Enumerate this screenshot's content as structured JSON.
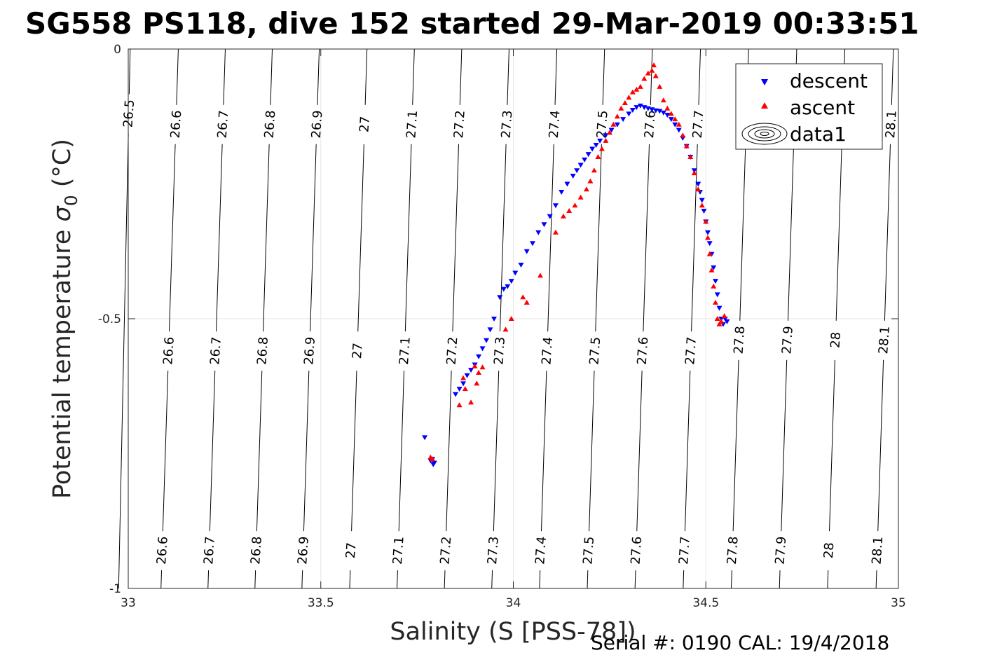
{
  "chart_data": {
    "type": "scatter",
    "title": "SG558 PS118, dive 152 started 29-Mar-2019 00:33:51",
    "xlabel": "Salinity (S [PSS-78])",
    "ylabel": "Potential temperature σ_0 (°C)",
    "ylabel_main": "Potential temperature ",
    "ylabel_symbol": "σ",
    "ylabel_sub": "0",
    "ylabel_unit": " (°C)",
    "xlim": [
      33,
      35
    ],
    "ylim": [
      -1,
      0
    ],
    "xticks": [
      33,
      33.5,
      34,
      34.5,
      35
    ],
    "xtick_labels": [
      "33",
      "33.5",
      "34",
      "34.5",
      "35"
    ],
    "yticks": [
      0,
      -0.5,
      -1
    ],
    "ytick_labels": [
      "0",
      "-0.5",
      "-1"
    ],
    "grid": true,
    "legend_position": "top-right",
    "legend": [
      {
        "label": "descent",
        "marker": "down-triangle",
        "color": "#0000ff"
      },
      {
        "label": "ascent",
        "marker": "up-triangle",
        "color": "#ff0000"
      },
      {
        "label": "data1",
        "marker": "contour",
        "color": "#000000"
      }
    ],
    "contours": [
      {
        "level": "26.5",
        "x_top": 33.005,
        "x_bottom": 32.975,
        "labels_y": [
          -0.12
        ]
      },
      {
        "level": "26.6",
        "x_top": 33.13,
        "x_bottom": 33.085,
        "labels_y": [
          -0.14,
          -0.56,
          -0.93
        ]
      },
      {
        "level": "26.7",
        "x_top": 33.252,
        "x_bottom": 33.207,
        "labels_y": [
          -0.14,
          -0.56,
          -0.93
        ]
      },
      {
        "level": "26.8",
        "x_top": 33.374,
        "x_bottom": 33.329,
        "labels_y": [
          -0.14,
          -0.56,
          -0.93
        ]
      },
      {
        "level": "26.9",
        "x_top": 33.496,
        "x_bottom": 33.451,
        "labels_y": [
          -0.14,
          -0.56,
          -0.93
        ]
      },
      {
        "level": "27",
        "x_top": 33.62,
        "x_bottom": 33.575,
        "labels_y": [
          -0.14,
          -0.56,
          -0.93
        ]
      },
      {
        "level": "27.1",
        "x_top": 33.743,
        "x_bottom": 33.698,
        "labels_y": [
          -0.14,
          -0.56,
          -0.93
        ]
      },
      {
        "level": "27.2",
        "x_top": 33.866,
        "x_bottom": 33.821,
        "labels_y": [
          -0.14,
          -0.56,
          -0.93
        ]
      },
      {
        "level": "27.3",
        "x_top": 33.989,
        "x_bottom": 33.944,
        "labels_y": [
          -0.14,
          -0.56,
          -0.93
        ]
      },
      {
        "level": "27.4",
        "x_top": 34.113,
        "x_bottom": 34.068,
        "labels_y": [
          -0.14,
          -0.56,
          -0.93
        ]
      },
      {
        "level": "27.5",
        "x_top": 34.237,
        "x_bottom": 34.192,
        "labels_y": [
          -0.14,
          -0.56,
          -0.93
        ]
      },
      {
        "level": "27.6",
        "x_top": 34.361,
        "x_bottom": 34.316,
        "labels_y": [
          -0.14,
          -0.56,
          -0.93
        ]
      },
      {
        "level": "27.7",
        "x_top": 34.486,
        "x_bottom": 34.441,
        "labels_y": [
          -0.14,
          -0.56,
          -0.93
        ]
      },
      {
        "level": "27.8",
        "x_top": 34.611,
        "x_bottom": 34.566,
        "labels_y": [
          -0.54,
          -0.93
        ]
      },
      {
        "level": "27.9",
        "x_top": 34.736,
        "x_bottom": 34.691,
        "labels_y": [
          -0.54,
          -0.93
        ]
      },
      {
        "level": "28",
        "x_top": 34.861,
        "x_bottom": 34.816,
        "labels_y": [
          -0.54,
          -0.93
        ]
      },
      {
        "level": "28.1",
        "x_top": 34.987,
        "x_bottom": 34.942,
        "labels_y": [
          -0.14,
          -0.54,
          -0.93
        ]
      }
    ],
    "series": [
      {
        "name": "descent",
        "marker": "down-triangle",
        "color": "#0000ff",
        "points": [
          [
            33.77,
            -0.72
          ],
          [
            33.79,
            -0.76
          ],
          [
            33.795,
            -0.767
          ],
          [
            33.785,
            -0.763
          ],
          [
            33.792,
            -0.77
          ],
          [
            33.85,
            -0.64
          ],
          [
            33.86,
            -0.63
          ],
          [
            33.87,
            -0.62
          ],
          [
            33.88,
            -0.605
          ],
          [
            33.89,
            -0.595
          ],
          [
            33.9,
            -0.585
          ],
          [
            33.91,
            -0.57
          ],
          [
            33.92,
            -0.555
          ],
          [
            33.93,
            -0.54
          ],
          [
            33.94,
            -0.52
          ],
          [
            33.95,
            -0.5
          ],
          [
            33.965,
            -0.46
          ],
          [
            33.975,
            -0.445
          ],
          [
            33.985,
            -0.44
          ],
          [
            33.995,
            -0.43
          ],
          [
            34.005,
            -0.415
          ],
          [
            34.02,
            -0.4
          ],
          [
            34.035,
            -0.375
          ],
          [
            34.05,
            -0.36
          ],
          [
            34.065,
            -0.34
          ],
          [
            34.08,
            -0.325
          ],
          [
            34.095,
            -0.31
          ],
          [
            34.11,
            -0.29
          ],
          [
            34.125,
            -0.265
          ],
          [
            34.14,
            -0.25
          ],
          [
            34.155,
            -0.235
          ],
          [
            34.165,
            -0.225
          ],
          [
            34.175,
            -0.215
          ],
          [
            34.185,
            -0.205
          ],
          [
            34.195,
            -0.195
          ],
          [
            34.205,
            -0.185
          ],
          [
            34.215,
            -0.178
          ],
          [
            34.225,
            -0.17
          ],
          [
            34.24,
            -0.16
          ],
          [
            34.255,
            -0.15
          ],
          [
            34.27,
            -0.14
          ],
          [
            34.285,
            -0.13
          ],
          [
            34.3,
            -0.12
          ],
          [
            34.31,
            -0.113
          ],
          [
            34.32,
            -0.108
          ],
          [
            34.33,
            -0.105
          ],
          [
            34.34,
            -0.108
          ],
          [
            34.35,
            -0.11
          ],
          [
            34.36,
            -0.112
          ],
          [
            34.37,
            -0.114
          ],
          [
            34.38,
            -0.115
          ],
          [
            34.39,
            -0.118
          ],
          [
            34.4,
            -0.122
          ],
          [
            34.41,
            -0.13
          ],
          [
            34.42,
            -0.14
          ],
          [
            34.43,
            -0.15
          ],
          [
            34.44,
            -0.165
          ],
          [
            34.45,
            -0.18
          ],
          [
            34.46,
            -0.2
          ],
          [
            34.47,
            -0.225
          ],
          [
            34.48,
            -0.25
          ],
          [
            34.485,
            -0.265
          ],
          [
            34.49,
            -0.28
          ],
          [
            34.495,
            -0.3
          ],
          [
            34.5,
            -0.32
          ],
          [
            34.505,
            -0.34
          ],
          [
            34.51,
            -0.36
          ],
          [
            34.515,
            -0.38
          ],
          [
            34.52,
            -0.405
          ],
          [
            34.525,
            -0.43
          ],
          [
            34.53,
            -0.455
          ],
          [
            34.535,
            -0.48
          ],
          [
            34.54,
            -0.5
          ],
          [
            34.545,
            -0.51
          ],
          [
            34.55,
            -0.5
          ],
          [
            34.555,
            -0.505
          ]
        ]
      },
      {
        "name": "ascent",
        "marker": "up-triangle",
        "color": "#ff0000",
        "points": [
          [
            33.785,
            -0.757
          ],
          [
            33.79,
            -0.76
          ],
          [
            33.86,
            -0.66
          ],
          [
            33.87,
            -0.61
          ],
          [
            33.875,
            -0.63
          ],
          [
            33.89,
            -0.655
          ],
          [
            33.905,
            -0.62
          ],
          [
            33.9,
            -0.588
          ],
          [
            33.91,
            -0.6
          ],
          [
            33.92,
            -0.59
          ],
          [
            33.98,
            -0.52
          ],
          [
            33.995,
            -0.5
          ],
          [
            34.025,
            -0.46
          ],
          [
            34.035,
            -0.47
          ],
          [
            34.07,
            -0.42
          ],
          [
            34.11,
            -0.34
          ],
          [
            34.13,
            -0.31
          ],
          [
            34.145,
            -0.3
          ],
          [
            34.16,
            -0.29
          ],
          [
            34.175,
            -0.275
          ],
          [
            34.19,
            -0.26
          ],
          [
            34.2,
            -0.245
          ],
          [
            34.21,
            -0.225
          ],
          [
            34.22,
            -0.2
          ],
          [
            34.23,
            -0.185
          ],
          [
            34.24,
            -0.17
          ],
          [
            34.25,
            -0.155
          ],
          [
            34.26,
            -0.14
          ],
          [
            34.27,
            -0.125
          ],
          [
            34.28,
            -0.11
          ],
          [
            34.29,
            -0.1
          ],
          [
            34.3,
            -0.09
          ],
          [
            34.31,
            -0.08
          ],
          [
            34.32,
            -0.075
          ],
          [
            34.33,
            -0.07
          ],
          [
            34.34,
            -0.055
          ],
          [
            34.35,
            -0.045
          ],
          [
            34.36,
            -0.04
          ],
          [
            34.365,
            -0.03
          ],
          [
            34.37,
            -0.05
          ],
          [
            34.38,
            -0.07
          ],
          [
            34.39,
            -0.095
          ],
          [
            34.4,
            -0.11
          ],
          [
            34.41,
            -0.12
          ],
          [
            34.42,
            -0.13
          ],
          [
            34.43,
            -0.14
          ],
          [
            34.44,
            -0.16
          ],
          [
            34.45,
            -0.18
          ],
          [
            34.46,
            -0.2
          ],
          [
            34.47,
            -0.23
          ],
          [
            34.48,
            -0.26
          ],
          [
            34.49,
            -0.29
          ],
          [
            34.5,
            -0.32
          ],
          [
            34.505,
            -0.35
          ],
          [
            34.51,
            -0.38
          ],
          [
            34.515,
            -0.41
          ],
          [
            34.52,
            -0.44
          ],
          [
            34.525,
            -0.47
          ],
          [
            34.53,
            -0.5
          ],
          [
            34.535,
            -0.51
          ],
          [
            34.54,
            -0.505
          ],
          [
            34.548,
            -0.495
          ]
        ]
      }
    ]
  },
  "footer": {
    "serial": "Serial #: 0190  CAL: 19/4/2018"
  }
}
